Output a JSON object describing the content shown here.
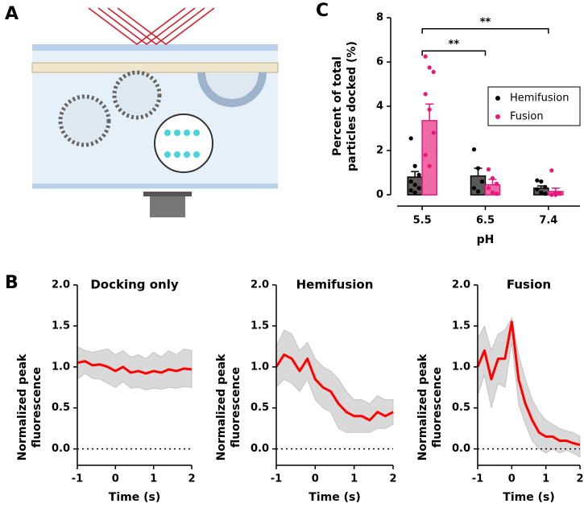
{
  "panels": [
    "A",
    "B",
    "C"
  ],
  "chart_data": [
    {
      "type": "bar",
      "categories": [
        "5.5",
        "6.5",
        "7.4"
      ],
      "xlabel": "pH",
      "ylabel": [
        "Percent of total",
        "particles docked (%)"
      ],
      "ylim": [
        0,
        8
      ],
      "yticks": [
        0,
        2,
        4,
        6,
        8
      ],
      "legend": "right",
      "series": [
        {
          "name": "Hemifusion",
          "color": "#000000",
          "fill": "#595959",
          "values": [
            0.8,
            0.85,
            0.3
          ],
          "errors": [
            0.25,
            0.35,
            0.1
          ],
          "points": [
            [
              2.55,
              1.3,
              0.9,
              0.6,
              0.45,
              0.3,
              0.2,
              0.1
            ],
            [
              2.05,
              1.2,
              0.6,
              0.3,
              0.15
            ],
            [
              0.65,
              0.6,
              0.35,
              0.25,
              0.1,
              0.05
            ]
          ]
        },
        {
          "name": "Fusion",
          "color": "#e8177a",
          "fill": "#f06aa8",
          "values": [
            3.35,
            0.45,
            0.15
          ],
          "errors": [
            0.75,
            0.25,
            0.15
          ],
          "points": [
            [
              6.25,
              5.75,
              5.55,
              4.55,
              3.85,
              2.8,
              1.8,
              1.3
            ],
            [
              1.15,
              0.75,
              0.5,
              0.3,
              0.1,
              0.05
            ],
            [
              1.1,
              0.1,
              0.05,
              0,
              0
            ]
          ]
        }
      ],
      "annotations": [
        {
          "text": "**",
          "from": "5.5",
          "to": "6.5",
          "y": 6.5
        },
        {
          "text": "**",
          "from": "5.5",
          "to": "7.4",
          "y": 7.5
        }
      ]
    },
    {
      "type": "line",
      "title": "Docking only",
      "xlabel": "Time (s)",
      "ylabel": [
        "Normalized peak",
        "fluorescence"
      ],
      "xlim": [
        -1,
        2
      ],
      "xticks": [
        -1,
        0,
        1,
        2
      ],
      "ylim": [
        -0.2,
        2
      ],
      "yticks": [
        {
          "value": 0,
          "label": "0.0"
        },
        0.5,
        {
          "value": 1,
          "label": "1.0"
        },
        1.5,
        {
          "value": 2,
          "label": "2.0"
        }
      ],
      "reference_line": 0,
      "color": "#ff0000",
      "band_color": "#d9d9d9",
      "x": [
        -1,
        -0.8,
        -0.6,
        -0.4,
        -0.2,
        0,
        0.2,
        0.4,
        0.6,
        0.8,
        1,
        1.2,
        1.4,
        1.6,
        1.8,
        2
      ],
      "values": [
        1.05,
        1.07,
        1.02,
        1.03,
        1.0,
        0.95,
        1.0,
        0.93,
        0.95,
        0.92,
        0.95,
        0.93,
        0.97,
        0.95,
        0.98,
        0.97
      ],
      "upper": [
        1.25,
        1.2,
        1.18,
        1.2,
        1.22,
        1.15,
        1.2,
        1.12,
        1.15,
        1.1,
        1.18,
        1.12,
        1.2,
        1.15,
        1.22,
        1.2
      ],
      "lower": [
        0.85,
        0.92,
        0.86,
        0.85,
        0.8,
        0.75,
        0.82,
        0.74,
        0.75,
        0.72,
        0.74,
        0.73,
        0.75,
        0.74,
        0.76,
        0.75
      ]
    },
    {
      "type": "line",
      "title": "Hemifusion",
      "xlabel": "Time (s)",
      "ylabel": [
        "Normalized peak",
        "fluorescence"
      ],
      "xlim": [
        -1,
        2
      ],
      "xticks": [
        -1,
        0,
        1,
        2
      ],
      "ylim": [
        -0.2,
        2
      ],
      "yticks": [
        {
          "value": 0,
          "label": "0.0"
        },
        0.5,
        {
          "value": 1,
          "label": "1.0"
        },
        1.5,
        {
          "value": 2,
          "label": "2.0"
        }
      ],
      "reference_line": 0,
      "color": "#ff0000",
      "band_color": "#d9d9d9",
      "x": [
        -1,
        -0.8,
        -0.6,
        -0.4,
        -0.2,
        0,
        0.2,
        0.4,
        0.6,
        0.8,
        1,
        1.2,
        1.4,
        1.6,
        1.8,
        2
      ],
      "values": [
        1.0,
        1.15,
        1.1,
        0.95,
        1.1,
        0.85,
        0.75,
        0.7,
        0.55,
        0.45,
        0.4,
        0.4,
        0.35,
        0.45,
        0.4,
        0.45
      ],
      "upper": [
        1.25,
        1.45,
        1.4,
        1.2,
        1.3,
        1.1,
        1.0,
        0.95,
        0.85,
        0.7,
        0.6,
        0.6,
        0.55,
        0.65,
        0.6,
        0.6
      ],
      "lower": [
        0.75,
        0.85,
        0.8,
        0.7,
        0.85,
        0.6,
        0.5,
        0.45,
        0.25,
        0.2,
        0.2,
        0.2,
        0.2,
        0.25,
        0.25,
        0.3
      ]
    },
    {
      "type": "line",
      "title": "Fusion",
      "xlabel": "Time (s)",
      "ylabel": [
        "Normalized peak",
        "fluorescence"
      ],
      "xlim": [
        -1,
        2
      ],
      "xticks": [
        -1,
        0,
        1,
        2
      ],
      "ylim": [
        -0.2,
        2
      ],
      "yticks": [
        {
          "value": 0,
          "label": "0.0"
        },
        0.5,
        {
          "value": 1,
          "label": "1.0"
        },
        1.5,
        {
          "value": 2,
          "label": "2.0"
        }
      ],
      "reference_line": 0,
      "color": "#ff0000",
      "band_color": "#d9d9d9",
      "x": [
        -1,
        -0.8,
        -0.6,
        -0.4,
        -0.2,
        0,
        0.2,
        0.4,
        0.6,
        0.8,
        1,
        1.2,
        1.4,
        1.6,
        1.8,
        2
      ],
      "values": [
        1.0,
        1.2,
        0.85,
        1.1,
        1.1,
        1.55,
        0.85,
        0.55,
        0.35,
        0.2,
        0.15,
        0.15,
        0.1,
        0.1,
        0.07,
        0.05
      ],
      "upper": [
        1.35,
        1.5,
        1.2,
        1.4,
        1.45,
        1.6,
        1.15,
        0.85,
        0.6,
        0.45,
        0.35,
        0.3,
        0.25,
        0.22,
        0.2,
        0.15
      ],
      "lower": [
        0.65,
        0.9,
        0.5,
        0.8,
        0.75,
        1.3,
        0.55,
        0.3,
        0.1,
        0.0,
        -0.05,
        0.0,
        -0.05,
        -0.02,
        -0.05,
        -0.1
      ]
    }
  ]
}
